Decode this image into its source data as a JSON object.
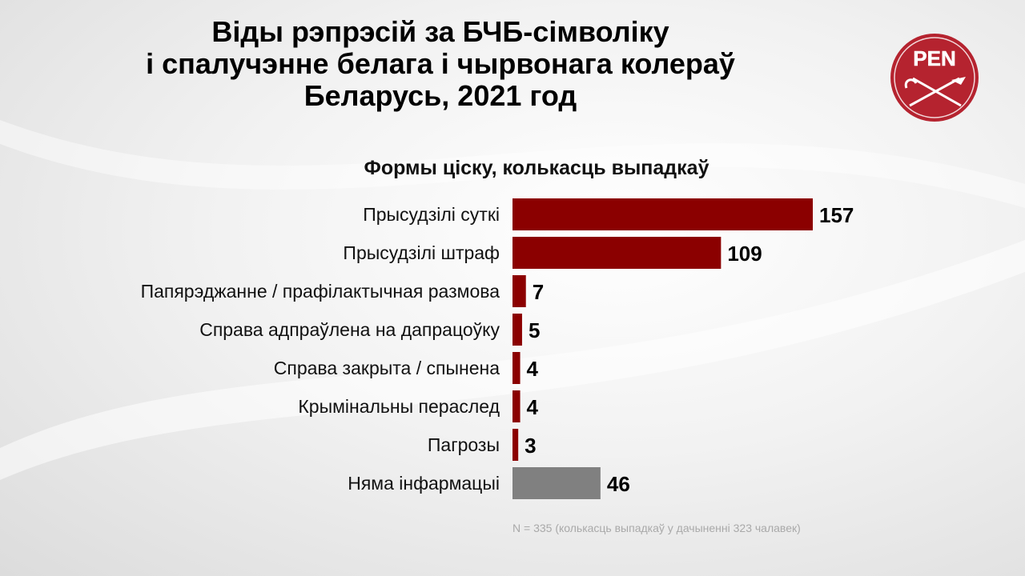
{
  "title": {
    "line1": "Віды рэпрэсій за БЧБ-сімволіку",
    "line2": "і спалучэнне белага і чырвонага колераў",
    "line3": "Беларусь, 2021 год"
  },
  "logo": {
    "text": "PEN",
    "icon": "pen-logo-icon",
    "color": "#b5232f"
  },
  "chart_data": {
    "type": "bar",
    "orientation": "horizontal",
    "title": "Формы ціску, колькасць выпадкаў",
    "categories": [
      "Прысудзілі суткі",
      "Прысудзілі штраф",
      "Папярэджанне / прафілактычная размова",
      "Справа адпраўлена на дапрацоўку",
      "Справа закрыта / спынена",
      "Крымінальны пераслед",
      "Пагрозы",
      "Няма інфармацыі"
    ],
    "values": [
      157,
      109,
      7,
      5,
      4,
      4,
      3,
      46
    ],
    "colors": [
      "#8b0000",
      "#8b0000",
      "#8b0000",
      "#8b0000",
      "#8b0000",
      "#8b0000",
      "#8b0000",
      "#808080"
    ],
    "xlim": [
      0,
      157
    ],
    "grid": false,
    "legend": "none"
  },
  "note": "N = 335  (колькасць  выпадкаў  у дачыненні  323 чалавек)"
}
